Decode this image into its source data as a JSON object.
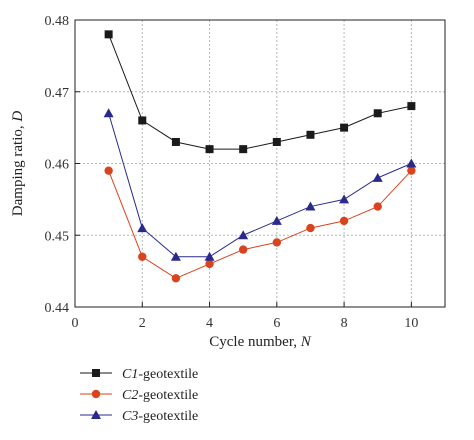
{
  "chart_data": {
    "type": "line",
    "title": "",
    "xlabel": "Cycle number, ",
    "xlabel_var": "N",
    "ylabel": "Damping ratio, ",
    "ylabel_var": "D",
    "xlim": [
      0,
      11
    ],
    "ylim": [
      0.44,
      0.48
    ],
    "xticks": [
      "0",
      "2",
      "4",
      "6",
      "8",
      "10"
    ],
    "yticks": [
      "0.44",
      "0.45",
      "0.46",
      "0.47",
      "0.48"
    ],
    "grid": true,
    "legend_position": "bottom-left",
    "x": [
      1,
      2,
      3,
      4,
      5,
      6,
      7,
      8,
      9,
      10
    ],
    "series": [
      {
        "name": "C1-geotextile",
        "name_italic": "C1",
        "name_rest": "-geotextile",
        "marker": "square",
        "color": "#1a1a1a",
        "values": [
          0.478,
          0.466,
          0.463,
          0.462,
          0.462,
          0.463,
          0.464,
          0.465,
          0.467,
          0.468
        ]
      },
      {
        "name": "C2-geotextile",
        "name_italic": "C2",
        "name_rest": "-geotextile",
        "marker": "circle",
        "color": "#d9431e",
        "values": [
          0.459,
          0.447,
          0.444,
          0.446,
          0.448,
          0.449,
          0.451,
          0.452,
          0.454,
          0.459
        ]
      },
      {
        "name": "C3-geotextile",
        "name_italic": "C3",
        "name_rest": "-geotextile",
        "marker": "triangle",
        "color": "#2a2a8c",
        "values": [
          0.467,
          0.451,
          0.447,
          0.447,
          0.45,
          0.452,
          0.454,
          0.455,
          0.458,
          0.46
        ]
      }
    ]
  }
}
